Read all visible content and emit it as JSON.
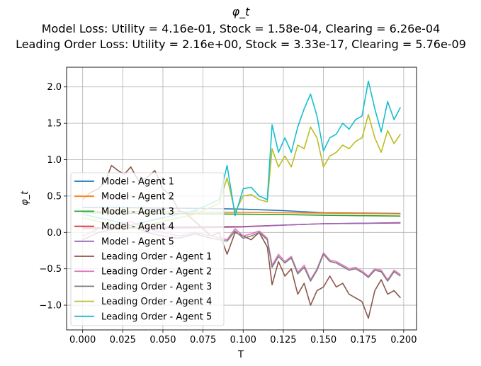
{
  "chart_data": {
    "type": "line",
    "title": "φ_t",
    "subtitle_lines": [
      "Model Loss: Utility = 4.16e-01, Stock = 1.58e-04, Clearing = 6.26e-04",
      "Leading Order Loss: Utility = 2.16e+00, Stock = 3.33e-17, Clearing = 5.76e-09"
    ],
    "xlabel": "T",
    "ylabel": "φ_t",
    "xlim": [
      -0.01,
      0.208
    ],
    "ylim": [
      -1.34,
      2.27
    ],
    "xticks": [
      0.0,
      0.025,
      0.05,
      0.075,
      0.1,
      0.125,
      0.15,
      0.175,
      0.2
    ],
    "xtick_labels": [
      "0.000",
      "0.025",
      "0.050",
      "0.075",
      "0.100",
      "0.125",
      "0.150",
      "0.175",
      "0.200"
    ],
    "yticks": [
      -1.0,
      -0.5,
      0.0,
      0.5,
      1.0,
      1.5,
      2.0
    ],
    "ytick_labels": [
      "−1.0",
      "−0.5",
      "0.0",
      "0.5",
      "1.0",
      "1.5",
      "2.0"
    ],
    "grid": true,
    "legend_position": "lower-left",
    "series": [
      {
        "name": "Model - Agent 1",
        "color": "#1f77b4",
        "x": [
          0.0,
          0.025,
          0.05,
          0.075,
          0.1,
          0.125,
          0.15,
          0.175,
          0.198
        ],
        "y": [
          0.34,
          0.34,
          0.335,
          0.33,
          0.32,
          0.3,
          0.27,
          0.265,
          0.26
        ]
      },
      {
        "name": "Model - Agent 2",
        "color": "#ff7f0e",
        "x": [
          0.0,
          0.025,
          0.05,
          0.075,
          0.1,
          0.125,
          0.15,
          0.175,
          0.198
        ],
        "y": [
          0.29,
          0.29,
          0.285,
          0.28,
          0.275,
          0.27,
          0.265,
          0.26,
          0.255
        ]
      },
      {
        "name": "Model - Agent 3",
        "color": "#2ca02c",
        "x": [
          0.0,
          0.025,
          0.05,
          0.075,
          0.1,
          0.125,
          0.15,
          0.175,
          0.198
        ],
        "y": [
          0.27,
          0.265,
          0.26,
          0.255,
          0.25,
          0.245,
          0.235,
          0.23,
          0.225
        ]
      },
      {
        "name": "Model - Agent 4",
        "color": "#d62728",
        "x": [
          0.0,
          0.025,
          0.05,
          0.075,
          0.1,
          0.125,
          0.15,
          0.175,
          0.198
        ],
        "y": [
          0.06,
          0.065,
          0.07,
          0.075,
          0.08,
          0.1,
          0.12,
          0.125,
          0.13
        ]
      },
      {
        "name": "Model - Agent 5",
        "color": "#9467bd",
        "x": [
          0.0,
          0.025,
          0.05,
          0.075,
          0.1,
          0.125,
          0.15,
          0.175,
          0.198
        ],
        "y": [
          0.05,
          0.055,
          0.06,
          0.065,
          0.075,
          0.1,
          0.12,
          0.125,
          0.135
        ]
      },
      {
        "name": "Leading Order - Agent 1",
        "color": "#8c564b",
        "x": [
          0.0,
          0.005,
          0.01,
          0.015,
          0.018,
          0.022,
          0.026,
          0.03,
          0.035,
          0.04,
          0.045,
          0.05,
          0.055,
          0.06,
          0.065,
          0.07,
          0.075,
          0.08,
          0.085,
          0.09,
          0.095,
          0.1,
          0.105,
          0.11,
          0.115,
          0.118,
          0.122,
          0.126,
          0.13,
          0.134,
          0.138,
          0.142,
          0.146,
          0.15,
          0.154,
          0.158,
          0.162,
          0.166,
          0.17,
          0.174,
          0.178,
          0.182,
          0.186,
          0.19,
          0.194,
          0.198
        ],
        "y": [
          0.45,
          0.55,
          0.6,
          0.75,
          0.92,
          0.85,
          0.8,
          0.9,
          0.7,
          0.75,
          0.85,
          0.6,
          0.5,
          0.3,
          0.25,
          0.15,
          0.05,
          -0.05,
          0.0,
          -0.3,
          0.0,
          -0.05,
          -0.1,
          0.0,
          -0.2,
          -0.72,
          -0.4,
          -0.6,
          -0.5,
          -0.85,
          -0.7,
          -1.0,
          -0.8,
          -0.75,
          -0.6,
          -0.75,
          -0.7,
          -0.85,
          -0.9,
          -0.95,
          -1.18,
          -0.8,
          -0.65,
          -0.85,
          -0.8,
          -0.9
        ]
      },
      {
        "name": "Leading Order - Agent 2",
        "color": "#e377c2",
        "x": [
          0.0,
          0.01,
          0.02,
          0.03,
          0.04,
          0.05,
          0.06,
          0.07,
          0.08,
          0.09,
          0.095,
          0.1,
          0.105,
          0.11,
          0.115,
          0.118,
          0.122,
          0.126,
          0.13,
          0.134,
          0.138,
          0.142,
          0.146,
          0.15,
          0.154,
          0.158,
          0.162,
          0.166,
          0.17,
          0.174,
          0.178,
          0.182,
          0.186,
          0.19,
          0.194,
          0.198
        ],
        "y": [
          -0.05,
          0.05,
          0.1,
          0.15,
          0.05,
          0.0,
          -0.05,
          0.0,
          -0.05,
          -0.1,
          0.05,
          -0.05,
          -0.02,
          0.02,
          -0.08,
          -0.45,
          -0.3,
          -0.4,
          -0.33,
          -0.55,
          -0.45,
          -0.65,
          -0.5,
          -0.28,
          -0.38,
          -0.4,
          -0.45,
          -0.5,
          -0.48,
          -0.53,
          -0.6,
          -0.5,
          -0.52,
          -0.65,
          -0.52,
          -0.58
        ]
      },
      {
        "name": "Leading Order - Agent 3",
        "color": "#7f7f7f",
        "x": [
          0.0,
          0.01,
          0.02,
          0.03,
          0.04,
          0.05,
          0.06,
          0.07,
          0.08,
          0.09,
          0.095,
          0.1,
          0.105,
          0.11,
          0.115,
          0.118,
          0.122,
          0.126,
          0.13,
          0.134,
          0.138,
          0.142,
          0.146,
          0.15,
          0.154,
          0.158,
          0.162,
          0.166,
          0.17,
          0.174,
          0.178,
          0.182,
          0.186,
          0.19,
          0.194,
          0.198
        ],
        "y": [
          -0.1,
          0.0,
          0.05,
          0.1,
          0.0,
          -0.05,
          -0.08,
          -0.02,
          -0.08,
          -0.12,
          0.02,
          -0.08,
          -0.05,
          0.0,
          -0.1,
          -0.48,
          -0.33,
          -0.42,
          -0.35,
          -0.57,
          -0.48,
          -0.67,
          -0.52,
          -0.3,
          -0.4,
          -0.42,
          -0.47,
          -0.52,
          -0.5,
          -0.55,
          -0.62,
          -0.52,
          -0.54,
          -0.67,
          -0.54,
          -0.6
        ]
      },
      {
        "name": "Leading Order - Agent 4",
        "color": "#bcbd22",
        "x": [
          0.0,
          0.01,
          0.02,
          0.03,
          0.04,
          0.05,
          0.06,
          0.07,
          0.08,
          0.085,
          0.09,
          0.095,
          0.1,
          0.105,
          0.11,
          0.115,
          0.118,
          0.122,
          0.126,
          0.13,
          0.134,
          0.138,
          0.142,
          0.146,
          0.15,
          0.154,
          0.158,
          0.162,
          0.166,
          0.17,
          0.174,
          0.178,
          0.182,
          0.186,
          0.19,
          0.194,
          0.198
        ],
        "y": [
          0.2,
          0.15,
          0.1,
          0.05,
          0.1,
          0.15,
          0.2,
          0.25,
          0.35,
          0.4,
          0.75,
          0.28,
          0.5,
          0.52,
          0.45,
          0.42,
          1.15,
          0.9,
          1.05,
          0.9,
          1.2,
          1.15,
          1.45,
          1.3,
          0.9,
          1.05,
          1.1,
          1.2,
          1.15,
          1.25,
          1.3,
          1.62,
          1.3,
          1.1,
          1.4,
          1.22,
          1.35
        ]
      },
      {
        "name": "Leading Order - Agent 5",
        "color": "#17becf",
        "x": [
          0.0,
          0.01,
          0.02,
          0.03,
          0.04,
          0.05,
          0.06,
          0.07,
          0.08,
          0.085,
          0.09,
          0.095,
          0.1,
          0.105,
          0.11,
          0.115,
          0.118,
          0.122,
          0.126,
          0.13,
          0.134,
          0.138,
          0.142,
          0.146,
          0.15,
          0.154,
          0.158,
          0.162,
          0.166,
          0.17,
          0.174,
          0.178,
          0.182,
          0.186,
          0.19,
          0.194,
          0.198
        ],
        "y": [
          0.25,
          0.2,
          0.15,
          0.1,
          0.15,
          0.2,
          0.25,
          0.3,
          0.4,
          0.45,
          0.92,
          0.23,
          0.6,
          0.62,
          0.5,
          0.45,
          1.48,
          1.1,
          1.3,
          1.1,
          1.45,
          1.7,
          1.9,
          1.6,
          1.12,
          1.3,
          1.35,
          1.5,
          1.42,
          1.55,
          1.6,
          2.08,
          1.7,
          1.38,
          1.8,
          1.55,
          1.72
        ]
      }
    ]
  }
}
